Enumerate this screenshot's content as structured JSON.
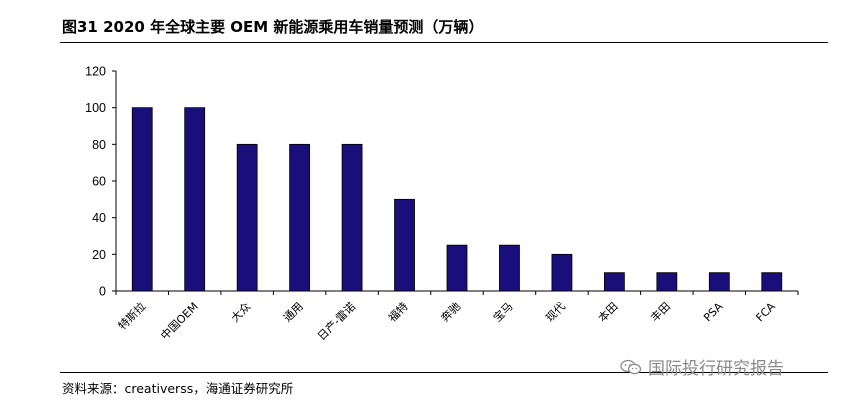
{
  "title": "图31 2020 年全球主要 OEM 新能源乘用车销量预测（万辆）",
  "source": "资料来源：creativerss，海通证券研究所",
  "watermark": "国际投行研究报告",
  "colors": {
    "bar": "#1a0f7a",
    "bar_outline": "#000000",
    "axis": "#000000"
  },
  "chart_data": {
    "type": "bar",
    "title": "图31 2020 年全球主要 OEM 新能源乘用车销量预测（万辆）",
    "xlabel": "",
    "ylabel": "",
    "ylim": [
      0,
      120
    ],
    "yticks": [
      0,
      20,
      40,
      60,
      80,
      100,
      120
    ],
    "grid": false,
    "legend": "none",
    "categories": [
      "特斯拉",
      "中国OEM",
      "大众",
      "通用",
      "日产-雷诺",
      "福特",
      "奔驰",
      "宝马",
      "现代",
      "本田",
      "丰田",
      "PSA",
      "FCA"
    ],
    "values": [
      100,
      100,
      80,
      80,
      80,
      50,
      25,
      25,
      20,
      10,
      10,
      10,
      10
    ]
  }
}
